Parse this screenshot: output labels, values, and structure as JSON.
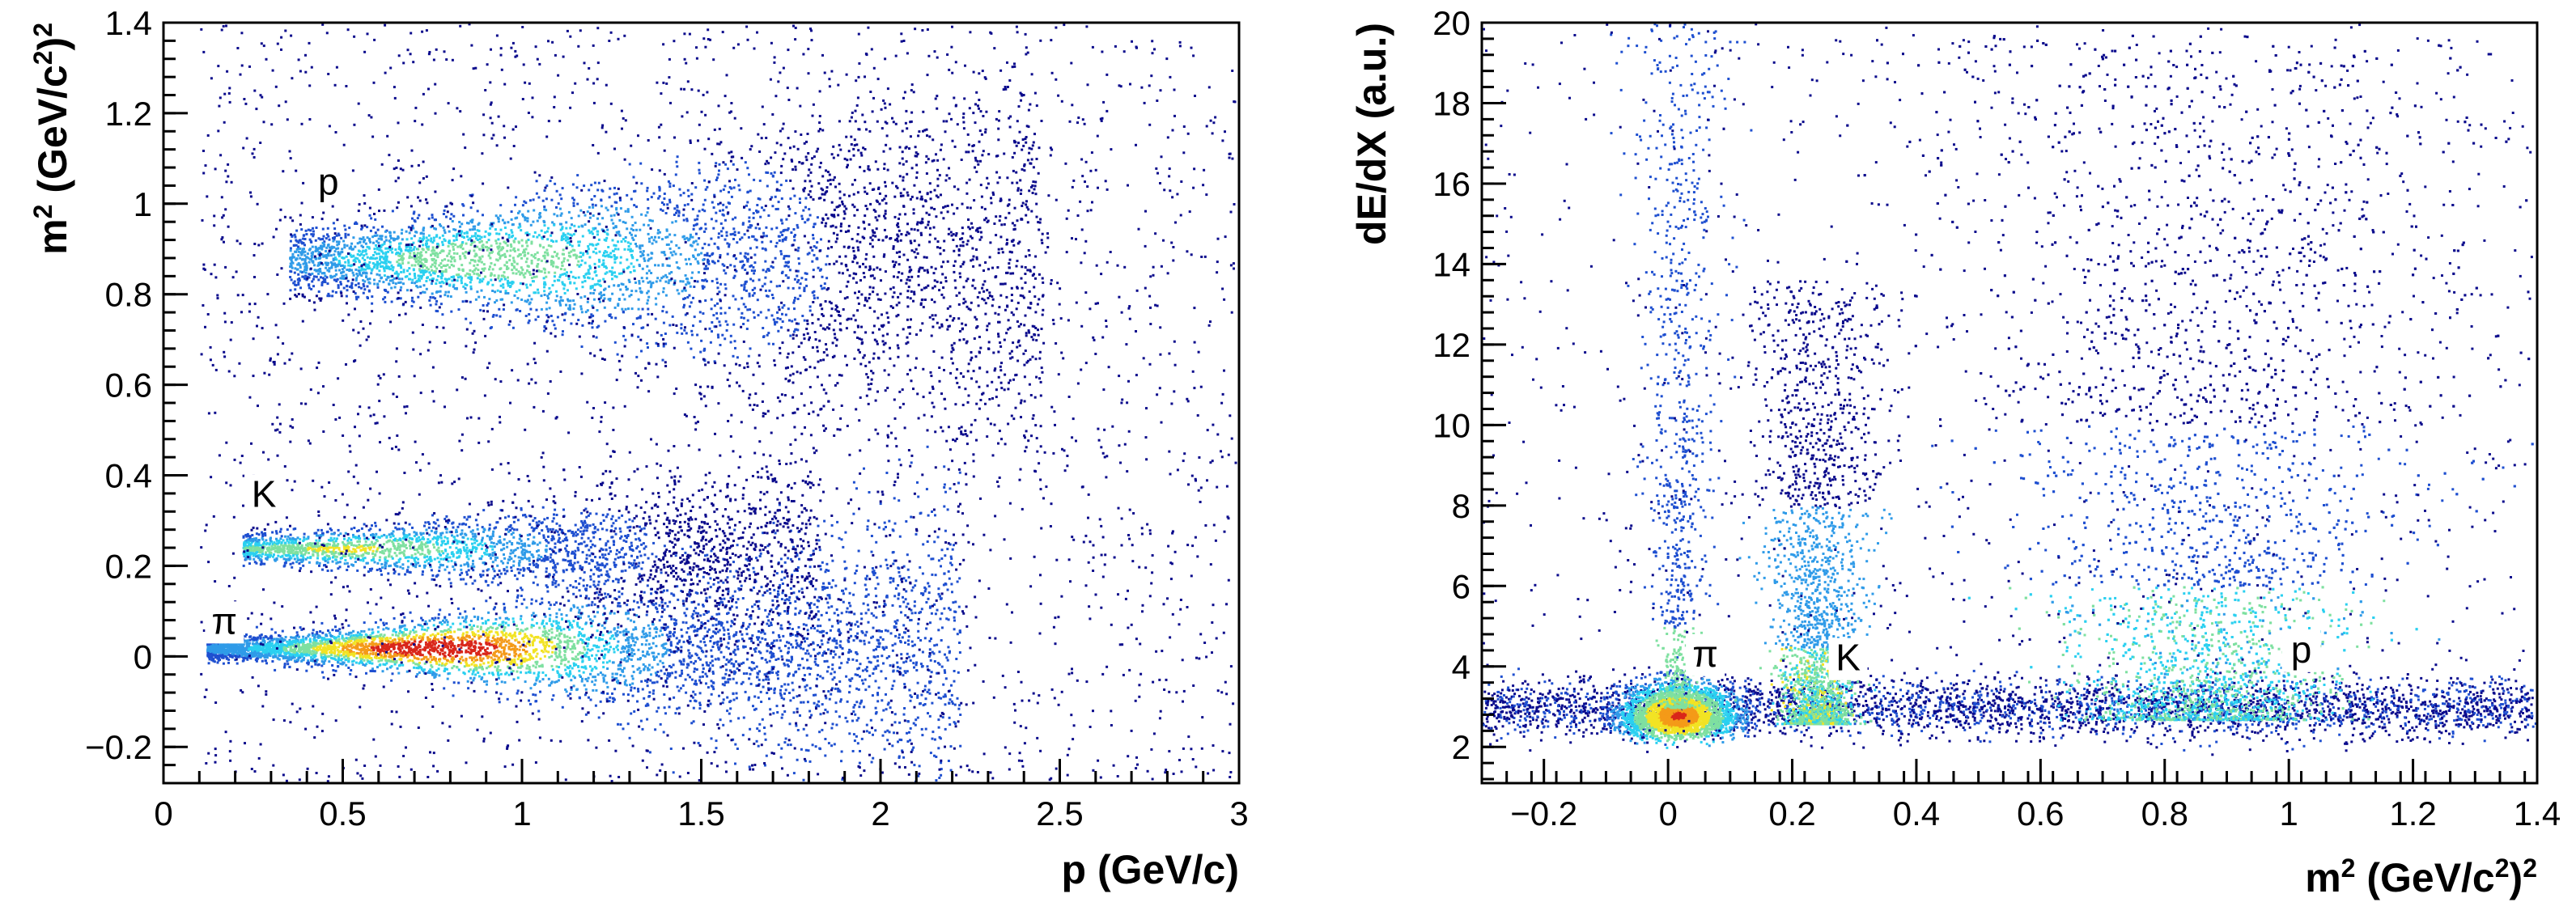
{
  "chart_data": [
    {
      "type": "scatter",
      "title": "",
      "xlabel": "p (GeV/c)",
      "ylabel_base": "m",
      "ylabel_sup1": "2",
      "ylabel_rest": " (GeV/c",
      "ylabel_sup2": "2",
      "ylabel_close": ")",
      "ylabel_sup3": "2",
      "xlim": [
        0,
        3
      ],
      "ylim": [
        -0.28,
        1.4
      ],
      "xticks": [
        "0",
        "0.5",
        "1",
        "1.5",
        "2",
        "2.5",
        "3"
      ],
      "xtick_values": [
        0,
        0.5,
        1,
        1.5,
        2,
        2.5,
        3
      ],
      "yticks": [
        "−0.2",
        "0",
        "0.2",
        "0.4",
        "0.6",
        "0.8",
        "1",
        "1.2",
        "1.4"
      ],
      "ytick_values": [
        -0.2,
        0,
        0.2,
        0.4,
        0.6,
        0.8,
        1.0,
        1.2,
        1.4
      ],
      "bands": [
        {
          "name": "pi",
          "label": "π",
          "label_x": 0.17,
          "label_y": 0.05,
          "center_m2": 0.02,
          "x_range": [
            0.12,
            2.3
          ],
          "peak_x": 0.75
        },
        {
          "name": "K",
          "label": "K",
          "label_x": 0.28,
          "label_y": 0.33,
          "center_m2": 0.24,
          "x_range": [
            0.22,
            1.8
          ],
          "peak_x": 0.5
        },
        {
          "name": "p",
          "label": "p",
          "label_x": 0.46,
          "label_y": 1.02,
          "center_m2": 0.88,
          "x_range": [
            0.35,
            2.4
          ],
          "peak_x": 0.9
        }
      ],
      "colormap": [
        "#0a0a8c",
        "#1e4fd0",
        "#2f9be8",
        "#2ad0f0",
        "#7ee0a0",
        "#f2e324",
        "#f49a18",
        "#d9261a"
      ]
    },
    {
      "type": "scatter",
      "title": "",
      "xlabel_base": "m",
      "xlabel_sup1": "2",
      "xlabel_rest": " (GeV/c",
      "xlabel_sup2": "2",
      "xlabel_close": ")",
      "xlabel_sup3": "2",
      "ylabel": "dE/dX (a.u.)",
      "xlim": [
        -0.3,
        1.4
      ],
      "ylim": [
        1.1,
        20
      ],
      "xticks": [
        "−0.2",
        "0",
        "0.2",
        "0.4",
        "0.6",
        "0.8",
        "1",
        "1.2",
        "1.4"
      ],
      "xtick_values": [
        -0.2,
        0,
        0.2,
        0.4,
        0.6,
        0.8,
        1.0,
        1.2,
        1.4
      ],
      "yticks": [
        "2",
        "4",
        "6",
        "8",
        "10",
        "12",
        "14",
        "16",
        "18",
        "20"
      ],
      "ytick_values": [
        2,
        4,
        6,
        8,
        10,
        12,
        14,
        16,
        18,
        20
      ],
      "peaks": [
        {
          "name": "pi",
          "label": "π",
          "label_x": 0.06,
          "label_y": 4.0,
          "center_m2": 0.015,
          "center_dedx": 2.8
        },
        {
          "name": "K",
          "label": "K",
          "label_x": 0.29,
          "label_y": 3.9,
          "center_m2": 0.24,
          "center_dedx": 3.2
        },
        {
          "name": "p",
          "label": "p",
          "label_x": 1.02,
          "label_y": 4.1,
          "center_m2": 0.87,
          "center_dedx": 3.6
        }
      ],
      "colormap": [
        "#0a0a8c",
        "#1e4fd0",
        "#2f9be8",
        "#2ad0f0",
        "#7ee0a0",
        "#f2e324",
        "#f49a18",
        "#d9261a"
      ]
    }
  ]
}
